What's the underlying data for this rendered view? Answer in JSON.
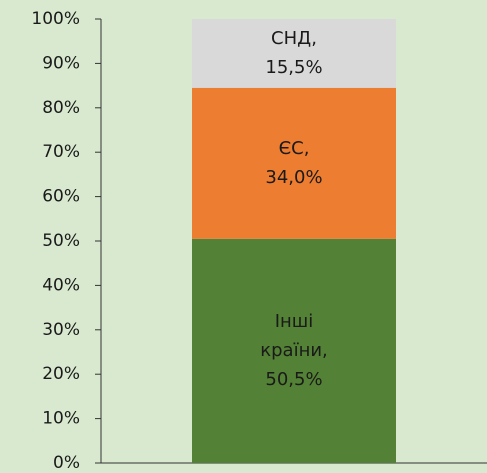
{
  "chart_data": {
    "type": "stacked_bar",
    "categories": [
      null
    ],
    "series": [
      {
        "name": "Інші країни,",
        "color": "#538135",
        "values": [
          50.5
        ],
        "value_labels": [
          "50,5%"
        ]
      },
      {
        "name": "ЄС,",
        "color": "#ed7d31",
        "values": [
          34.0
        ],
        "value_labels": [
          "34,0%"
        ]
      },
      {
        "name": "СНД,",
        "color": "#d9d9d9",
        "values": [
          15.5
        ],
        "value_labels": [
          "15,5%"
        ]
      }
    ],
    "ylim": [
      0,
      100
    ],
    "yticks": [
      {
        "value": 0,
        "label": "0%"
      },
      {
        "value": 10,
        "label": "10%"
      },
      {
        "value": 20,
        "label": "20%"
      },
      {
        "value": 30,
        "label": "30%"
      },
      {
        "value": 40,
        "label": "40%"
      },
      {
        "value": 50,
        "label": "50%"
      },
      {
        "value": 60,
        "label": "60%"
      },
      {
        "value": 70,
        "label": "70%"
      },
      {
        "value": 80,
        "label": "80%"
      },
      {
        "value": 90,
        "label": "90%"
      },
      {
        "value": 100,
        "label": "100%"
      }
    ]
  }
}
